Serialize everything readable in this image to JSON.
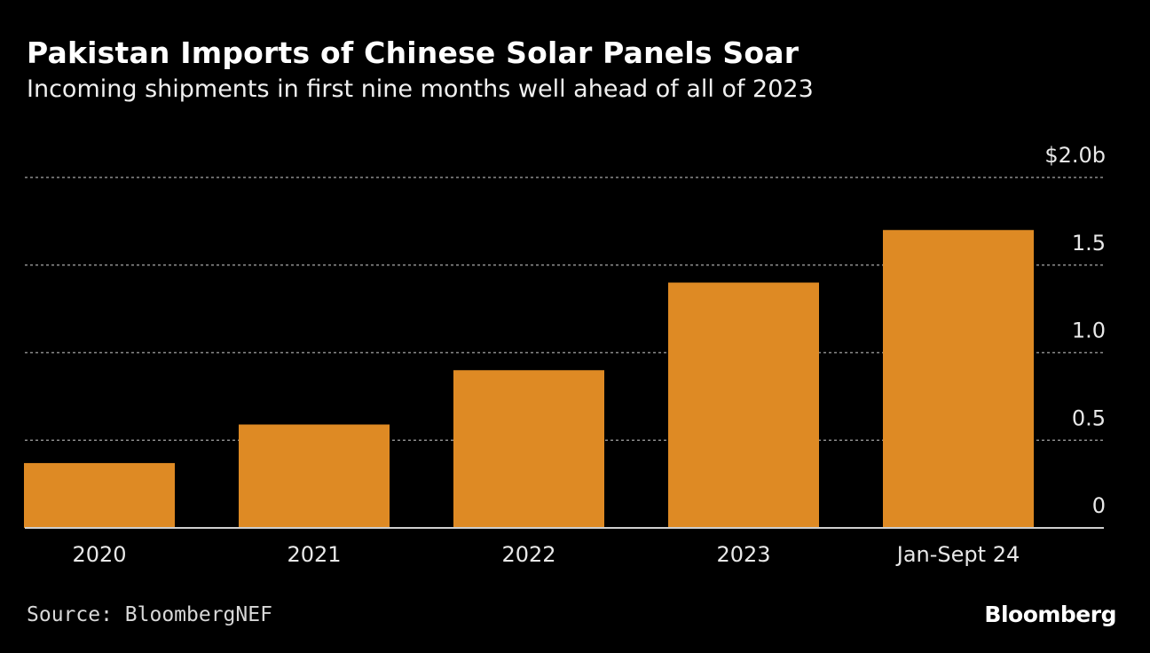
{
  "header": {
    "title": "Pakistan Imports of Chinese Solar Panels Soar",
    "subtitle": "Incoming shipments in first nine months well ahead of all of 2023"
  },
  "footer": {
    "source": "Source: BloombergNEF",
    "brand": "Bloomberg"
  },
  "colors": {
    "background": "#000000",
    "bar": "#de8a24",
    "grid": "#8c8c8c",
    "axis": "#cfcfcf",
    "text": "#ffffff"
  },
  "chart_data": {
    "type": "bar",
    "categories": [
      "2020",
      "2021",
      "2022",
      "2023",
      "Jan-Sept 24"
    ],
    "values": [
      0.37,
      0.59,
      0.9,
      1.4,
      1.7
    ],
    "yticks": [
      0,
      0.5,
      1.0,
      1.5,
      2.0
    ],
    "ytick_labels": [
      "0",
      "0.5",
      "1.0",
      "1.5",
      "$2.0b"
    ],
    "ylim": [
      0,
      2.0
    ],
    "grid": true,
    "legend": "none",
    "xlabel": "",
    "ylabel": ""
  }
}
